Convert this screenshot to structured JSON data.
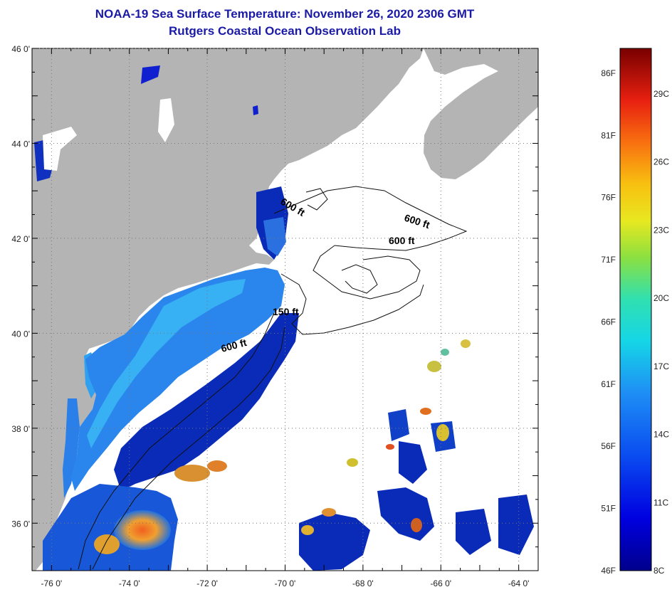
{
  "title": {
    "line1": "NOAA-19 Sea Surface Temperature:  November 26, 2020 2306 GMT",
    "line2": "Rutgers Coastal Ocean Observation Lab"
  },
  "map": {
    "lat_ticks": [
      {
        "label": "46 0'",
        "value": 46
      },
      {
        "label": "44 0'",
        "value": 44
      },
      {
        "label": "42 0'",
        "value": 42
      },
      {
        "label": "40 0'",
        "value": 40
      },
      {
        "label": "38 0'",
        "value": 38
      },
      {
        "label": "36 0'",
        "value": 36
      }
    ],
    "lon_ticks": [
      {
        "label": "-76 0'",
        "value": -76
      },
      {
        "label": "-74 0'",
        "value": -74
      },
      {
        "label": "-72 0'",
        "value": -72
      },
      {
        "label": "-70 0'",
        "value": -70
      },
      {
        "label": "-68 0'",
        "value": -68
      },
      {
        "label": "-66 0'",
        "value": -66
      },
      {
        "label": "-64 0'",
        "value": -64
      }
    ],
    "lon_range": [
      -76.5,
      -63.5
    ],
    "lat_range": [
      35,
      46
    ],
    "contour_labels": [
      "600 ft",
      "600 ft",
      "600 ft",
      "150 ft",
      "600 ft"
    ],
    "colors": {
      "land": "#b4b4b4",
      "ocean_nodata": "#ffffff",
      "sst_cold": "#0a1aa0",
      "sst_mid": "#1e6ee6",
      "sst_light": "#30a8f0",
      "sst_warm": "#f08020"
    }
  },
  "colorbar": {
    "fahrenheit_labels": [
      "86F",
      "81F",
      "76F",
      "71F",
      "66F",
      "61F",
      "56F",
      "51F",
      "46F"
    ],
    "celsius_labels": [
      "29C",
      "26C",
      "23C",
      "20C",
      "17C",
      "14C",
      "11C",
      "8C"
    ],
    "range_f": [
      46,
      88
    ],
    "range_c": [
      8,
      31
    ]
  }
}
